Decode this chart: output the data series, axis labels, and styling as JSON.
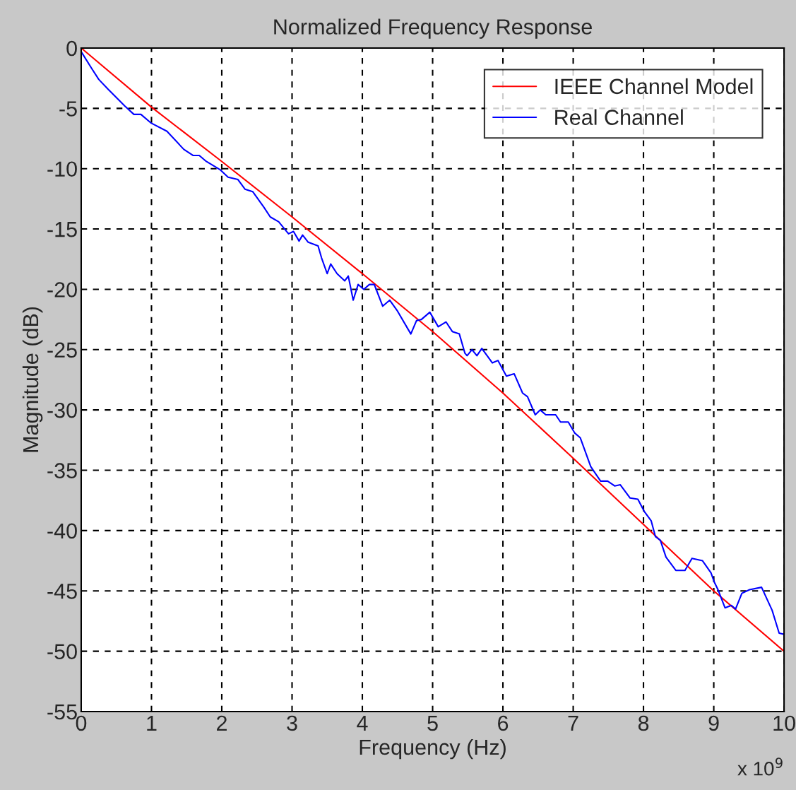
{
  "chart_data": {
    "type": "line",
    "title": "Normalized Frequency Response",
    "xlabel": "Frequency (Hz)",
    "ylabel": "Magnitude (dB)",
    "annotations": [
      "x 10$^{9}$"
    ],
    "xlim": [
      0,
      10
    ],
    "xticks": [
      0,
      1,
      2,
      3,
      4,
      5,
      6,
      7,
      8,
      9,
      10
    ],
    "ylim": [
      -55,
      0
    ],
    "yticks": [
      -55,
      -50,
      -45,
      -40,
      -35,
      -30,
      -25,
      -20,
      -15,
      -10,
      -5,
      0
    ],
    "grid": true,
    "legend": "top right",
    "line_style": "solid",
    "series": [
      {
        "name": "IEEE Channel Model",
        "color": "#ff0000",
        "x": [
          0,
          1,
          2,
          3,
          4,
          5,
          6,
          7,
          8,
          9,
          10
        ],
        "values": [
          0,
          -4.9,
          -9.4,
          -14.0,
          -18.7,
          -23.5,
          -28.6,
          -34.0,
          -39.5,
          -45.0,
          -50.0
        ]
      },
      {
        "name": "Real Channel",
        "color": "#0000ff",
        "x": [
          0,
          0.15,
          0.25,
          0.38,
          0.62,
          0.75,
          0.85,
          0.99,
          1.22,
          1.46,
          1.59,
          1.68,
          1.78,
          1.98,
          2.09,
          2.23,
          2.33,
          2.44,
          2.6,
          2.69,
          2.81,
          2.95,
          3.02,
          3.1,
          3.15,
          3.23,
          3.37,
          3.42,
          3.5,
          3.55,
          3.64,
          3.75,
          3.8,
          3.87,
          3.94,
          4.02,
          4.1,
          4.17,
          4.29,
          4.39,
          4.5,
          4.69,
          4.77,
          4.84,
          4.96,
          5.08,
          5.19,
          5.28,
          5.38,
          5.46,
          5.49,
          5.56,
          5.63,
          5.7,
          5.85,
          5.93,
          6.05,
          6.16,
          6.28,
          6.35,
          6.46,
          6.53,
          6.61,
          6.75,
          6.82,
          6.93,
          7.02,
          7.1,
          7.25,
          7.39,
          7.49,
          7.59,
          7.67,
          7.81,
          7.92,
          8.01,
          8.11,
          8.17,
          8.24,
          8.32,
          8.46,
          8.59,
          8.69,
          8.84,
          8.96,
          9.01,
          9.06,
          9.16,
          9.25,
          9.31,
          9.4,
          9.51,
          9.68,
          9.83,
          9.93,
          10.0
        ],
        "values": [
          -0.3,
          -1.7,
          -2.6,
          -3.4,
          -4.8,
          -5.5,
          -5.5,
          -6.2,
          -6.9,
          -8.4,
          -8.9,
          -8.9,
          -9.4,
          -10.1,
          -10.7,
          -10.9,
          -11.7,
          -11.9,
          -13.2,
          -14.0,
          -14.4,
          -15.4,
          -15.2,
          -16.0,
          -15.5,
          -16.1,
          -16.4,
          -17.4,
          -18.7,
          -17.9,
          -18.7,
          -19.3,
          -18.9,
          -20.9,
          -19.6,
          -20.0,
          -19.6,
          -19.6,
          -21.4,
          -20.9,
          -21.8,
          -23.7,
          -22.6,
          -22.5,
          -21.9,
          -23.1,
          -22.7,
          -23.5,
          -23.7,
          -25.3,
          -25.5,
          -25.0,
          -25.5,
          -24.9,
          -26.1,
          -25.9,
          -27.2,
          -27.0,
          -28.6,
          -28.9,
          -30.4,
          -30.0,
          -30.4,
          -30.4,
          -31.0,
          -31.0,
          -31.9,
          -32.3,
          -34.7,
          -35.9,
          -35.9,
          -36.3,
          -36.2,
          -37.3,
          -37.4,
          -38.4,
          -39.2,
          -40.5,
          -40.8,
          -42.2,
          -43.3,
          -43.3,
          -42.3,
          -42.5,
          -43.5,
          -44.3,
          -44.9,
          -46.4,
          -46.2,
          -46.5,
          -45.2,
          -44.9,
          -44.7,
          -46.6,
          -48.5,
          -48.6
        ]
      }
    ]
  }
}
